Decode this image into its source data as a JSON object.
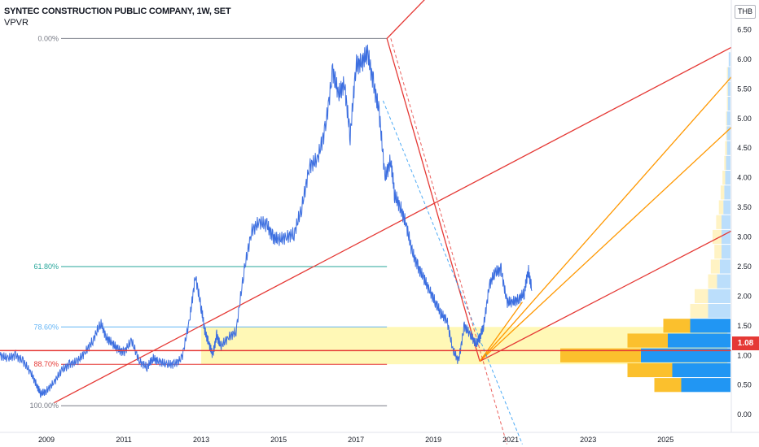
{
  "legend": {
    "title": "SYNTEC CONSTRUCTION PUBLIC COMPANY, 1W, SET",
    "indicator": "VPVR"
  },
  "currency": "THB",
  "last_price": "1.08",
  "colors": {
    "price_line": "#3d6fe0",
    "fan_red": "#e53935",
    "fan_orange": "#ff9800",
    "fib_zone": "#fff59d",
    "fib_level_0": "#787b86",
    "fib_level_618": "#26a69a",
    "fib_level_786": "#64b5f6",
    "fib_level_887": "#e53935",
    "fib_level_100": "#787b86",
    "vp_up": "#2196f3",
    "vp_down": "#fbc02d",
    "vp_up_light": "#bbdefb",
    "vp_down_light": "#fff3c4",
    "badge": "#e53935"
  },
  "chart_data": {
    "type": "line",
    "title": "SYNTEC CONSTRUCTION PUBLIC COMPANY, 1W, SET",
    "ylabel": "THB",
    "xlim": [
      2007.8,
      2026.7
    ],
    "ylim": [
      -0.3,
      7.0
    ],
    "x_ticks": [
      "2009",
      "2011",
      "2013",
      "2015",
      "2017",
      "2019",
      "2021",
      "2023",
      "2025"
    ],
    "y_ticks": [
      "0.00",
      "0.50",
      "1.00",
      "1.50",
      "2.00",
      "2.50",
      "3.00",
      "3.50",
      "4.00",
      "4.50",
      "5.00",
      "5.50",
      "6.00",
      "6.50"
    ],
    "series": [
      {
        "x": [
          2007.8,
          2008.0,
          2008.2,
          2008.4,
          2008.6,
          2008.75,
          2008.85,
          2009.0,
          2009.2,
          2009.4,
          2009.6,
          2009.8,
          2010.0,
          2010.2,
          2010.4,
          2010.55,
          2010.7,
          2010.85,
          2011.0,
          2011.2,
          2011.4,
          2011.6,
          2011.75,
          2011.9,
          2012.1,
          2012.3,
          2012.5,
          2012.7,
          2012.85,
          2013.0,
          2013.1,
          2013.2,
          2013.3,
          2013.4,
          2013.5,
          2013.7,
          2013.9,
          2014.1,
          2014.3,
          2014.5,
          2014.7,
          2014.85,
          2015.0,
          2015.2,
          2015.4,
          2015.6,
          2015.8,
          2016.0,
          2016.2,
          2016.4,
          2016.55,
          2016.7,
          2016.85,
          2017.0,
          2017.15,
          2017.3,
          2017.45,
          2017.6,
          2017.75,
          2017.9,
          2018.0,
          2018.15,
          2018.3,
          2018.45,
          2018.6,
          2018.75,
          2018.9,
          2019.05,
          2019.2,
          2019.35,
          2019.5,
          2019.65,
          2019.8,
          2019.95,
          2020.1,
          2020.2,
          2020.3,
          2020.45,
          2020.6,
          2020.75,
          2020.9,
          2021.05,
          2021.2,
          2021.35,
          2021.45,
          2021.55
        ],
        "y": [
          1.0,
          0.95,
          1.0,
          0.9,
          0.7,
          0.5,
          0.35,
          0.4,
          0.55,
          0.75,
          0.85,
          0.9,
          1.05,
          1.25,
          1.55,
          1.3,
          1.2,
          1.1,
          1.05,
          1.25,
          0.9,
          0.8,
          0.95,
          0.9,
          0.85,
          0.85,
          0.95,
          1.6,
          2.35,
          1.8,
          1.4,
          1.2,
          1.0,
          1.35,
          1.15,
          1.3,
          1.4,
          2.4,
          3.1,
          3.25,
          3.2,
          3.0,
          2.95,
          3.0,
          3.05,
          3.5,
          4.2,
          4.3,
          4.8,
          5.8,
          5.4,
          5.6,
          4.7,
          5.9,
          5.95,
          6.1,
          5.6,
          5.1,
          4.0,
          4.3,
          3.7,
          3.5,
          3.2,
          2.75,
          2.5,
          2.3,
          2.1,
          1.9,
          1.7,
          1.6,
          1.1,
          0.9,
          1.5,
          1.35,
          1.2,
          1.3,
          1.5,
          2.2,
          2.4,
          2.45,
          1.9,
          1.9,
          1.95,
          2.05,
          2.45,
          2.1
        ]
      }
    ],
    "fib_levels": [
      {
        "label": "0.00%",
        "value": 6.35
      },
      {
        "label": "61.80%",
        "value": 2.5
      },
      {
        "label": "78.60%",
        "value": 1.48
      },
      {
        "label": "88.70%",
        "value": 0.85
      },
      {
        "label": "100.00%",
        "value": 0.15
      }
    ],
    "horizontal_line": 1.08,
    "volume_profile": [
      {
        "price": 0.5,
        "up": 0.55,
        "down": 0.3
      },
      {
        "price": 0.75,
        "up": 0.65,
        "down": 0.5
      },
      {
        "price": 1.0,
        "up": 1.0,
        "down": 0.9
      },
      {
        "price": 1.25,
        "up": 0.7,
        "down": 0.45
      },
      {
        "price": 1.5,
        "up": 0.45,
        "down": 0.3
      },
      {
        "price": 1.75,
        "up": 0.25,
        "down": 0.2
      },
      {
        "price": 2.0,
        "up": 0.25,
        "down": 0.15
      },
      {
        "price": 2.25,
        "up": 0.15,
        "down": 0.1
      },
      {
        "price": 2.5,
        "up": 0.12,
        "down": 0.1
      },
      {
        "price": 2.75,
        "up": 0.1,
        "down": 0.08
      },
      {
        "price": 3.0,
        "up": 0.1,
        "down": 0.1
      },
      {
        "price": 3.25,
        "up": 0.1,
        "down": 0.06
      },
      {
        "price": 3.5,
        "up": 0.08,
        "down": 0.05
      },
      {
        "price": 3.75,
        "up": 0.07,
        "down": 0.04
      },
      {
        "price": 4.0,
        "up": 0.06,
        "down": 0.03
      },
      {
        "price": 4.25,
        "up": 0.05,
        "down": 0.02
      },
      {
        "price": 4.5,
        "up": 0.04,
        "down": 0.02
      },
      {
        "price": 4.75,
        "up": 0.04,
        "down": 0.01
      },
      {
        "price": 5.0,
        "up": 0.04,
        "down": 0.01
      },
      {
        "price": 5.25,
        "up": 0.03,
        "down": 0.01
      },
      {
        "price": 5.5,
        "up": 0.03,
        "down": 0.01
      },
      {
        "price": 5.75,
        "up": 0.03,
        "down": 0.01
      },
      {
        "price": 6.0,
        "up": 0.02,
        "down": 0.0
      }
    ],
    "grid": false,
    "legend_position": "top-left"
  }
}
